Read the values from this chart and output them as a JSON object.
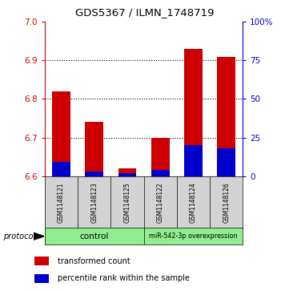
{
  "title": "GDS5367 / ILMN_1748719",
  "samples": [
    "GSM1148121",
    "GSM1148123",
    "GSM1148125",
    "GSM1148122",
    "GSM1148124",
    "GSM1148126"
  ],
  "transformed_counts": [
    6.82,
    6.74,
    6.62,
    6.7,
    6.93,
    6.91
  ],
  "percentile_ranks": [
    9,
    3,
    2,
    4,
    20,
    18
  ],
  "ylim": [
    6.6,
    7.0
  ],
  "yticks_left": [
    6.6,
    6.7,
    6.8,
    6.9,
    7.0
  ],
  "yticks_right": [
    0,
    25,
    50,
    75,
    100
  ],
  "bar_color": "#CC0000",
  "blue_color": "#0000CC",
  "bar_bottom": 6.6,
  "background_color": "#ffffff",
  "legend_red_label": "transformed count",
  "legend_blue_label": "percentile rank within the sample",
  "protocol_label": "protocol",
  "tick_color_left": "#CC0000",
  "tick_color_right": "#0000CC",
  "gray_bg": "#D3D3D3",
  "green_bg": "#90EE90"
}
